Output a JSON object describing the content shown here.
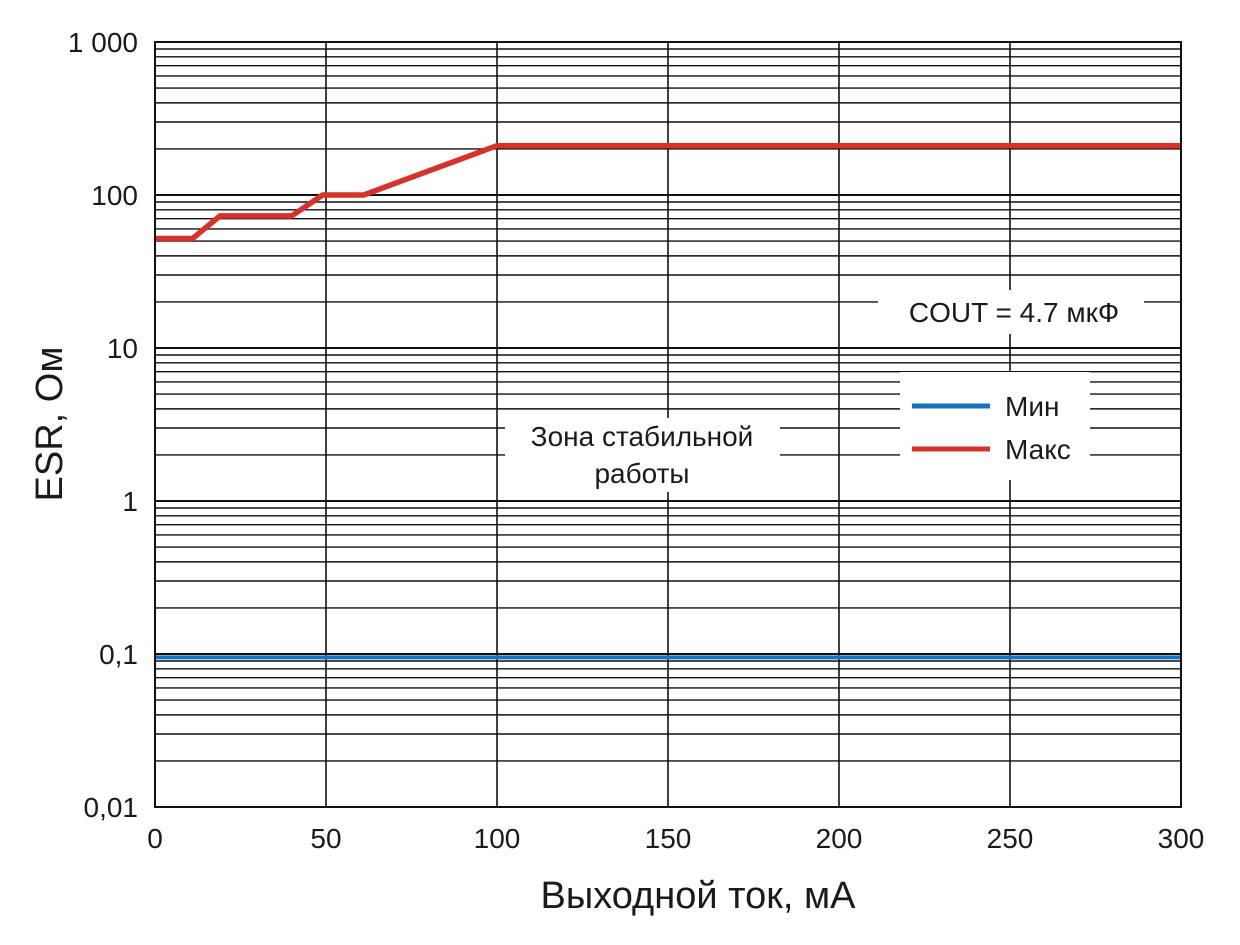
{
  "chart_data": {
    "type": "line",
    "xlabel": "Выходной ток, мА",
    "ylabel": "ESR, Ом",
    "x_scale": "linear",
    "y_scale": "log",
    "xlim": [
      0,
      300
    ],
    "ylim": [
      0.01,
      1000
    ],
    "grid": true,
    "x_ticks": [
      0,
      50,
      100,
      150,
      200,
      250,
      300
    ],
    "x_tick_labels": [
      "0",
      "50",
      "100",
      "150",
      "200",
      "250",
      "300"
    ],
    "y_ticks": [
      0.01,
      0.1,
      1,
      10,
      100,
      1000
    ],
    "y_tick_labels": [
      "0,01",
      "0,1",
      "1",
      "10",
      "100",
      "1 000"
    ],
    "series": [
      {
        "name": "Мин",
        "color": "#1673c2",
        "x": [
          0,
          300
        ],
        "y": [
          0.095,
          0.095
        ]
      },
      {
        "name": "Макс",
        "color": "#d7312a",
        "x": [
          0,
          11,
          19,
          40,
          49,
          61,
          100,
          300
        ],
        "y": [
          52,
          52,
          73,
          73,
          100,
          100,
          210,
          210
        ]
      }
    ],
    "legend_position": "right",
    "annotations": [
      "COUT = 4.7 мкФ",
      "Зона стабильной",
      "работы"
    ]
  }
}
